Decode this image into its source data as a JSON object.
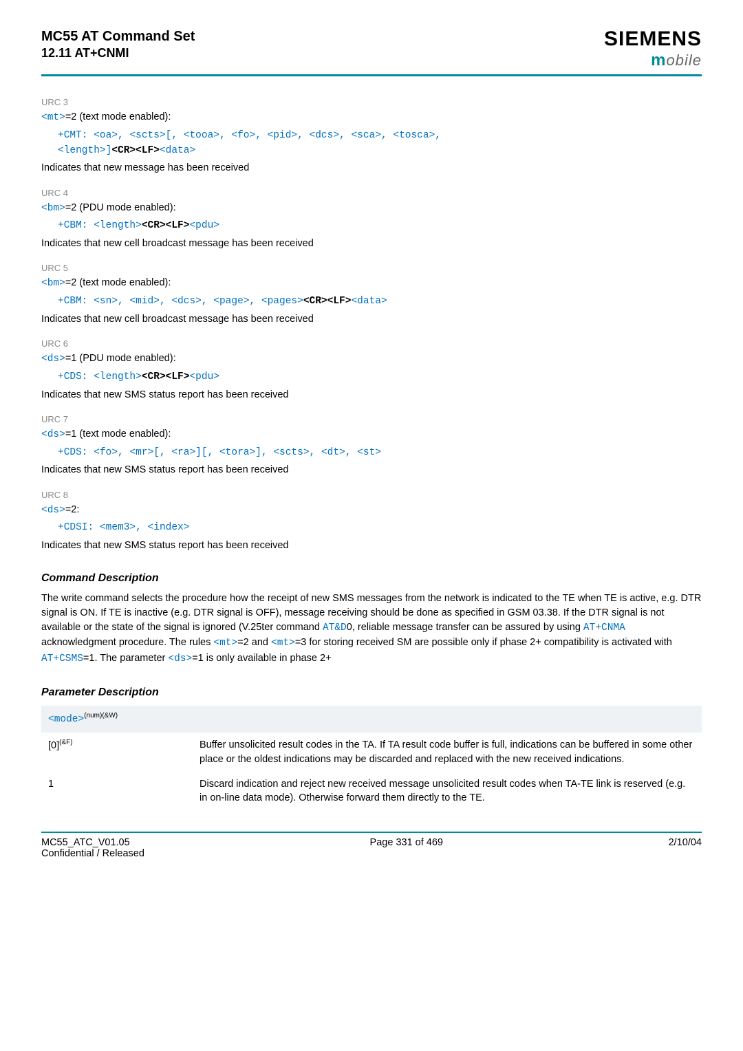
{
  "header": {
    "title": "MC55 AT Command Set",
    "subtitle": "12.11 AT+CNMI",
    "brand": "SIEMENS",
    "brand_sub": "obile"
  },
  "urc": [
    {
      "label": "URC 3",
      "line1_pre": "<mt>",
      "line1_post": "=2 (text mode enabled):",
      "code": "+CMT: <oa>, <scts>[, <tooa>, <fo>, <pid>, <dcs>, <sca>, <tosca>, <length>]<CR><LF><data>",
      "desc": "Indicates that new message has been received"
    },
    {
      "label": "URC 4",
      "line1_pre": "<bm>",
      "line1_post": "=2 (PDU mode enabled):",
      "code": "+CBM: <length><CR><LF><pdu>",
      "desc": "Indicates that new cell broadcast message has been received"
    },
    {
      "label": "URC 5",
      "line1_pre": "<bm>",
      "line1_post": "=2 (text mode enabled):",
      "code": "+CBM: <sn>, <mid>, <dcs>, <page>, <pages><CR><LF><data>",
      "desc": "Indicates that new cell broadcast message has been received"
    },
    {
      "label": "URC 6",
      "line1_pre": "<ds>",
      "line1_post": "=1 (PDU mode enabled):",
      "code": "+CDS: <length><CR><LF><pdu>",
      "desc": "Indicates that new SMS status report has been received"
    },
    {
      "label": "URC 7",
      "line1_pre": "<ds>",
      "line1_post": "=1 (text mode enabled):",
      "code": "+CDS: <fo>, <mr>[, <ra>][, <tora>], <scts>, <dt>, <st>",
      "desc": "Indicates that new SMS status report has been received"
    },
    {
      "label": "URC 8",
      "line1_pre": "<ds>",
      "line1_post": "=2:",
      "code": "+CDSI: <mem3>, <index>",
      "desc": "Indicates that new SMS status report has been received"
    }
  ],
  "cmd_desc_heading": "Command Description",
  "cmd_desc_text": {
    "p1": "The write command selects the procedure how the receipt of new SMS messages from the network is indicated to the TE when TE is active, e.g. DTR signal is ON. If TE is inactive (e.g. DTR signal is OFF), message receiving should be done as specified in GSM 03.38. If the DTR signal is not available or the state of the signal is ignored (V.25ter command ",
    "link1": "AT&D",
    "p2": "0, reliable message transfer can be assured by using ",
    "link2": "AT+CNMA",
    "p3": " acknowledgment procedure. The rules ",
    "link3": "<mt>",
    "p4": "=2 and ",
    "link4": "<mt>",
    "p5": "=3 for storing received SM are possible only if phase 2+ compatibility is activated with ",
    "link5": "AT+CSMS",
    "p6": "=1. The parameter ",
    "link6": "<ds>",
    "p7": "=1 is only available in phase 2+"
  },
  "param_desc_heading": "Parameter Description",
  "param": {
    "mode_label": "<mode>",
    "mode_sup": "(num)(&W)",
    "row0_key": "[0]",
    "row0_sup": "(&F)",
    "row0_val": "Buffer unsolicited result codes in the TA. If TA result code buffer is full, indications can be buffered in some other place or the oldest indications may be discarded and replaced with the new received indications.",
    "row1_key": "1",
    "row1_val": "Discard indication and reject new received message unsolicited result codes when TA-TE link is reserved (e.g. in on-line data mode). Otherwise forward them directly to the TE."
  },
  "footer": {
    "left1": "MC55_ATC_V01.05",
    "left2": "Confidential / Released",
    "center": "Page 331 of 469",
    "right": "2/10/04"
  }
}
